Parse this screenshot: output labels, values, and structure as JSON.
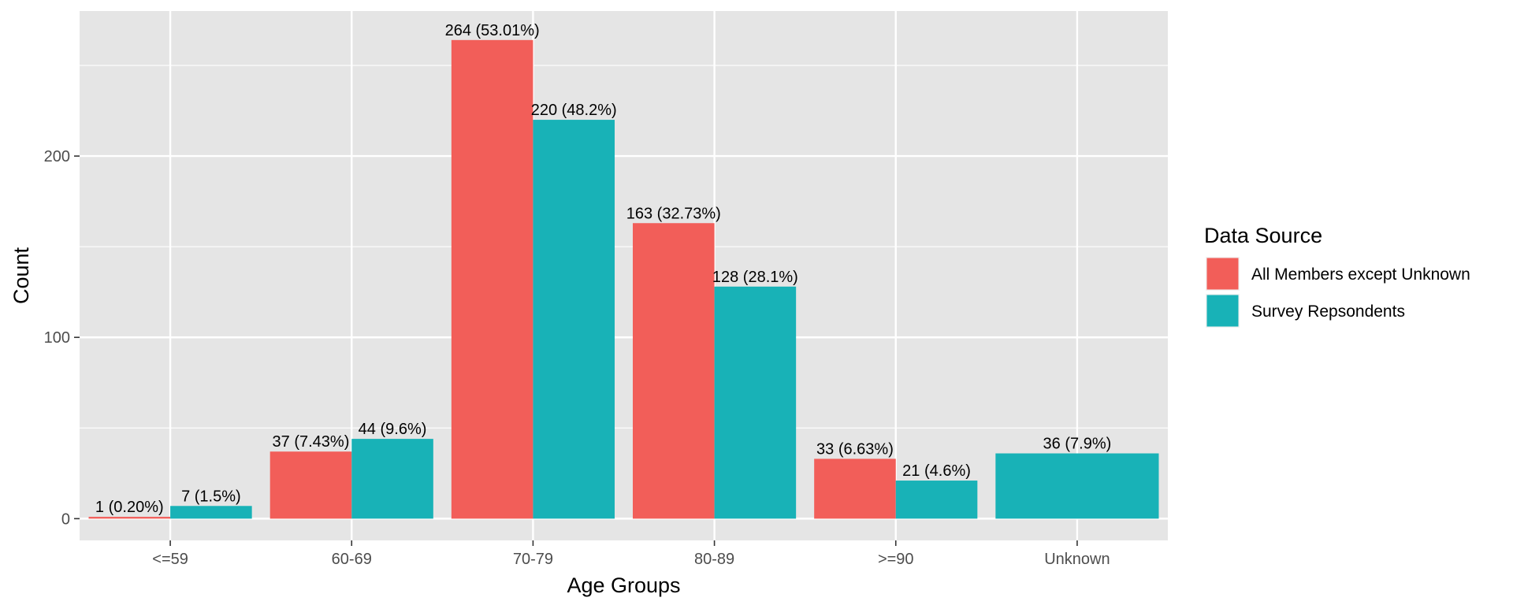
{
  "chart_data": {
    "type": "bar",
    "xlabel": "Age Groups",
    "ylabel": "Count",
    "ylim": [
      -12,
      280
    ],
    "yticks": [
      0,
      100,
      200
    ],
    "categories": [
      "<=59",
      "60-69",
      "70-79",
      "80-89",
      ">=90",
      "Unknown"
    ],
    "grid": true,
    "legend": {
      "title": "Data Source",
      "position": "right"
    },
    "series": [
      {
        "name": "All Members except Unknown",
        "color": "#F25E59",
        "values": [
          1,
          37,
          264,
          163,
          33,
          null
        ],
        "labels": [
          "1 (0.20%)",
          "37 (7.43%)",
          "264 (53.01%)",
          "163 (32.73%)",
          "33 (6.63%)",
          null
        ]
      },
      {
        "name": "Survey Repsondents",
        "color": "#18B2B7",
        "values": [
          7,
          44,
          220,
          128,
          21,
          36
        ],
        "labels": [
          "7 (1.5%)",
          "44 (9.6%)",
          "220 (48.2%)",
          "128 (28.1%)",
          "21 (4.6%)",
          "36 (7.9%)"
        ]
      }
    ],
    "colors": {
      "panel_background": "#E5E5E5",
      "grid_major": "#FFFFFF"
    }
  }
}
